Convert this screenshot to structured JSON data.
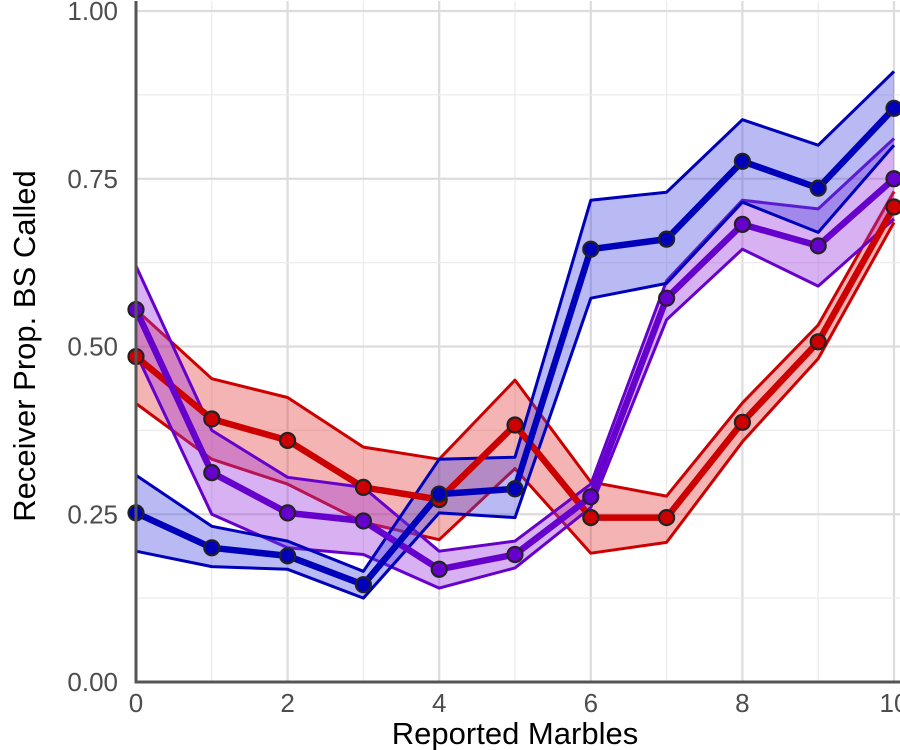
{
  "chart_data": {
    "type": "line",
    "title": "",
    "xlabel": "Reported Marbles",
    "ylabel": "Receiver Prop. BS Called",
    "xlim": [
      0,
      10
    ],
    "ylim": [
      0,
      1
    ],
    "x_ticks": [
      "0",
      "2",
      "4",
      "6",
      "8",
      "10"
    ],
    "y_ticks": [
      "0.00",
      "0.25",
      "0.50",
      "0.75",
      "1.00"
    ],
    "grid": true,
    "legend": "none",
    "x": [
      0,
      1,
      2,
      3,
      4,
      5,
      6,
      7,
      8,
      9,
      10
    ],
    "series": [
      {
        "color": "#e53b3b",
        "edge_color": "#cc0000",
        "values": [
          0.485,
          0.392,
          0.36,
          0.29,
          0.272,
          0.383,
          0.245,
          0.245,
          0.387,
          0.507,
          0.708
        ],
        "lower": [
          0.415,
          0.332,
          0.295,
          0.238,
          0.212,
          0.318,
          0.192,
          0.208,
          0.358,
          0.482,
          0.685
        ],
        "upper": [
          0.555,
          0.452,
          0.424,
          0.35,
          0.332,
          0.45,
          0.298,
          0.277,
          0.416,
          0.532,
          0.731
        ]
      },
      {
        "color": "#9933dd",
        "edge_color": "#6600cc",
        "values": [
          0.555,
          0.312,
          0.252,
          0.24,
          0.168,
          0.19,
          0.276,
          0.572,
          0.682,
          0.65,
          0.75
        ],
        "lower": [
          0.49,
          0.25,
          0.2,
          0.19,
          0.14,
          0.17,
          0.26,
          0.54,
          0.645,
          0.59,
          0.69
        ],
        "upper": [
          0.62,
          0.375,
          0.305,
          0.29,
          0.195,
          0.21,
          0.295,
          0.598,
          0.718,
          0.705,
          0.81
        ]
      },
      {
        "color": "#4646e0",
        "edge_color": "#0000bb",
        "values": [
          0.252,
          0.2,
          0.188,
          0.145,
          0.28,
          0.288,
          0.645,
          0.66,
          0.776,
          0.736,
          0.855
        ],
        "lower": [
          0.195,
          0.172,
          0.168,
          0.125,
          0.252,
          0.245,
          0.572,
          0.594,
          0.715,
          0.67,
          0.8
        ],
        "upper": [
          0.308,
          0.232,
          0.21,
          0.165,
          0.332,
          0.335,
          0.718,
          0.73,
          0.838,
          0.8,
          0.91
        ]
      }
    ]
  }
}
